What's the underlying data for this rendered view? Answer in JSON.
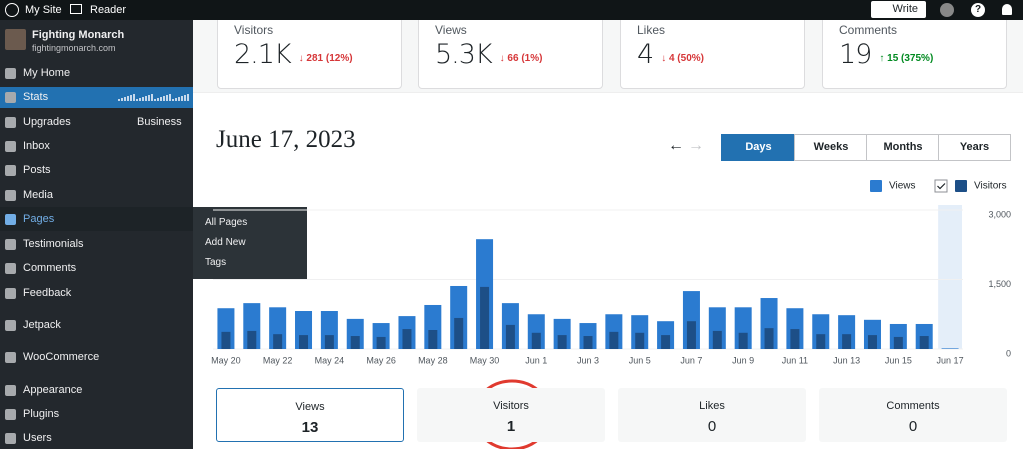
{
  "top_bar": {
    "site": "My Site",
    "reader": "Reader",
    "write": "Write"
  },
  "sidebar": {
    "site_name": "Fighting Monarch",
    "site_url": "fightingmonarch.com",
    "menu": [
      {
        "label": "My Home"
      },
      {
        "label": "Stats"
      },
      {
        "label": "Upgrades",
        "badge": "Business"
      },
      {
        "label": "Inbox"
      },
      {
        "label": "Posts"
      },
      {
        "label": "Media"
      },
      {
        "label": "Pages"
      },
      {
        "label": "Testimonials"
      },
      {
        "label": "Comments"
      },
      {
        "label": "Feedback"
      },
      {
        "label": "Jetpack"
      },
      {
        "label": "WooCommerce"
      },
      {
        "label": "Appearance"
      },
      {
        "label": "Plugins"
      },
      {
        "label": "Users"
      }
    ],
    "submenu": [
      "All Pages",
      "Add New",
      "Tags"
    ]
  },
  "highlights": [
    {
      "label": "Visitors",
      "value": "2.1K",
      "change": "↓ 281 (12%)"
    },
    {
      "label": "Views",
      "value": "5.3K",
      "change": "↓ 66 (1%)"
    },
    {
      "label": "Likes",
      "value": "4",
      "change": "↓ 4 (50%)"
    },
    {
      "label": "Comments",
      "value": "19",
      "change": "↑ 15 (375%)"
    }
  ],
  "period": {
    "date": "June 17, 2023",
    "tabs": [
      "Days",
      "Weeks",
      "Months",
      "Years"
    ]
  },
  "chart_data": {
    "type": "bar",
    "categories": [
      "May 20",
      null,
      "May 22",
      null,
      "May 24",
      null,
      "May 26",
      null,
      "May 28",
      null,
      "May 30",
      null,
      "Jun 1",
      null,
      "Jun 3",
      null,
      "Jun 5",
      null,
      "Jun 7",
      null,
      "Jun 9",
      null,
      "Jun 11",
      null,
      "Jun 13",
      null,
      "Jun 15",
      null,
      "Jun 17"
    ],
    "series": [
      {
        "name": "Views",
        "color": "#2b7bd0",
        "values": [
          880,
          990,
          900,
          820,
          820,
          650,
          560,
          710,
          950,
          1360,
          2370,
          990,
          750,
          650,
          560,
          750,
          730,
          600,
          1250,
          900,
          900,
          1100,
          880,
          750,
          730,
          630,
          540,
          540,
          13
        ]
      },
      {
        "name": "Visitors",
        "color": "#1d4f87",
        "values": [
          370,
          390,
          320,
          300,
          300,
          280,
          260,
          430,
          410,
          670,
          1340,
          520,
          350,
          300,
          280,
          370,
          350,
          300,
          600,
          390,
          350,
          450,
          430,
          320,
          320,
          300,
          260,
          280,
          1
        ]
      }
    ],
    "ylim": [
      0,
      3000
    ],
    "yticks": [
      0,
      {
        "value": 1500,
        "label": "1,500"
      },
      {
        "value": 3000,
        "label": "3,000"
      }
    ],
    "grid": true
  },
  "summary_tabs": [
    {
      "label": "Views",
      "value": 13
    },
    {
      "label": "Visitors",
      "value": 1
    },
    {
      "label": "Likes",
      "value": 0
    },
    {
      "label": "Comments",
      "value": 0
    }
  ]
}
